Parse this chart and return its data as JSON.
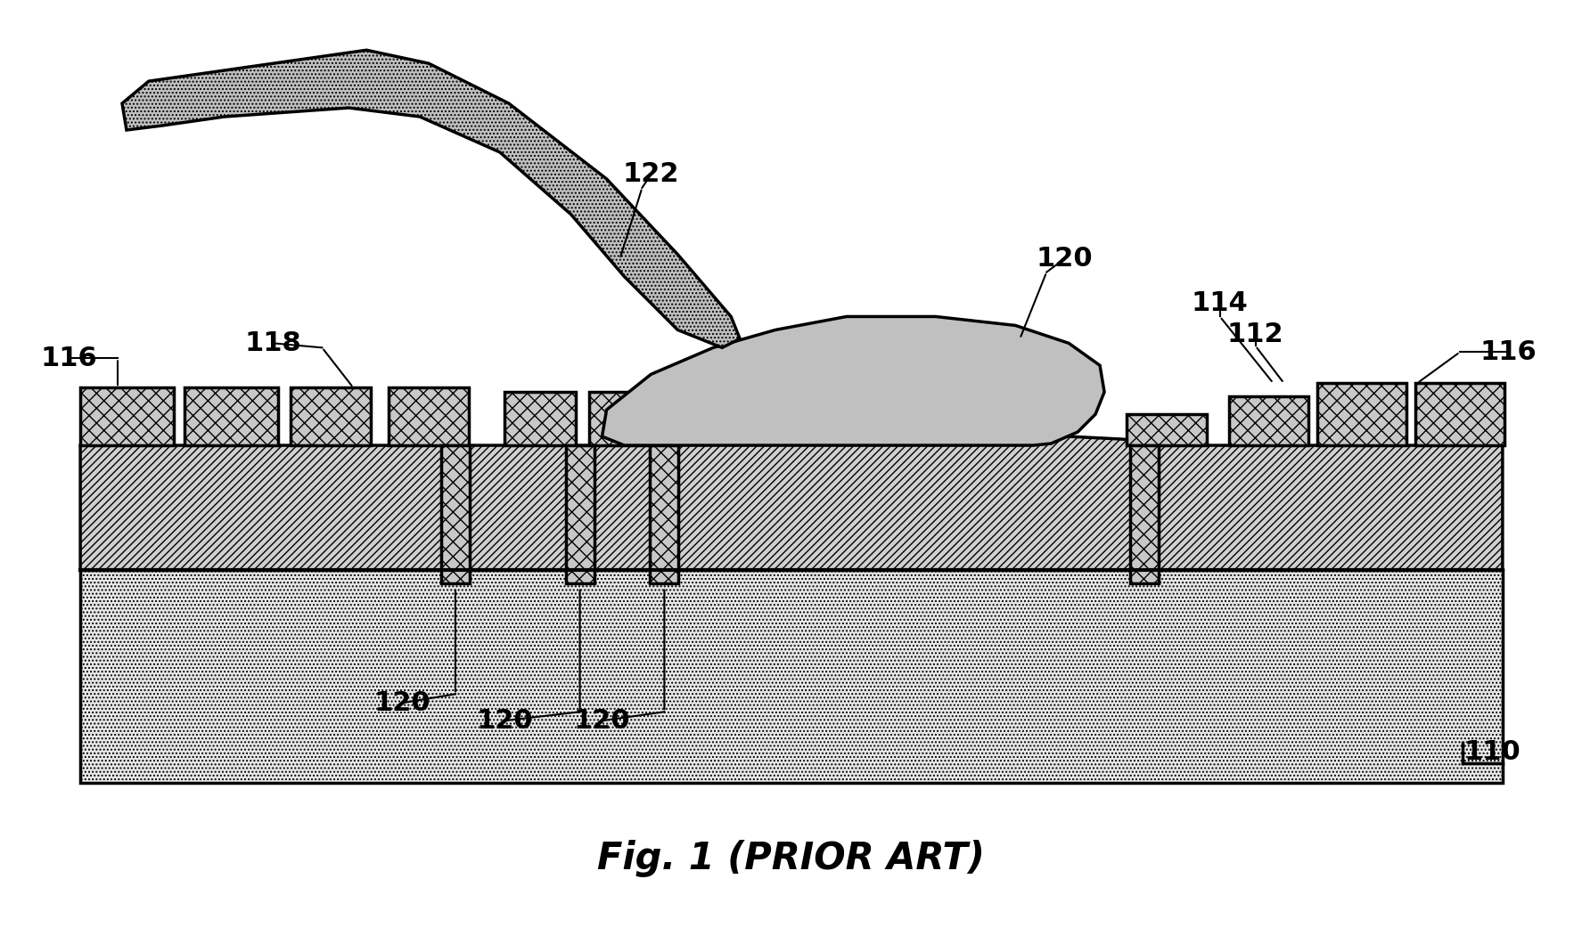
{
  "title": "Fig. 1 (PRIOR ART)",
  "title_fontsize": 30,
  "bg_color": "#ffffff",
  "substrate_facecolor": "#e8e8e8",
  "substrate_hatch": "....",
  "metal_layer_facecolor": "#d0d0d0",
  "metal_layer_hatch": "////",
  "pad_facecolor": "#c8c8c8",
  "pad_hatch": "xx",
  "bump_facecolor": "#c0c0c0",
  "wire_facecolor": "#c0c0c0",
  "wire_hatch": "....",
  "label_fontsize": 22,
  "label_fontweight": "bold",
  "lw": 2.5
}
